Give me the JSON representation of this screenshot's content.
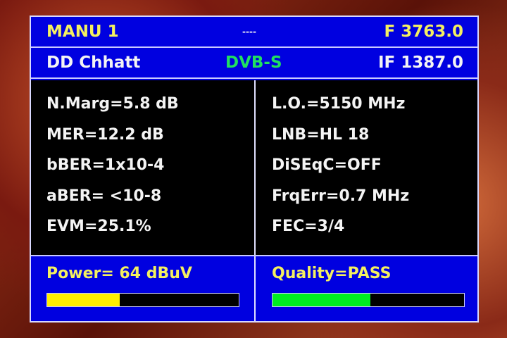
{
  "header": {
    "channel": "MANU 1",
    "center": "----",
    "freq": "F 3763.0",
    "service": "DD Chhatt",
    "standard": "DVB-S",
    "if_freq": "IF 1387.0"
  },
  "left": [
    "N.Marg=5.8 dB",
    "MER=12.2 dB",
    "bBER=1x10-4",
    "aBER= <10-8",
    "EVM=25.1%"
  ],
  "right": [
    "L.O.=5150 MHz",
    "LNB=HL 18",
    "DiSEqC=OFF",
    "FrqErr=0.7 MHz",
    "FEC=3/4"
  ],
  "power": {
    "label": "Power= 64 dBuV",
    "level_percent": 38,
    "color": "#ffee00"
  },
  "quality": {
    "label": "Quality=PASS",
    "level_percent": 51,
    "color": "#00ee20"
  }
}
